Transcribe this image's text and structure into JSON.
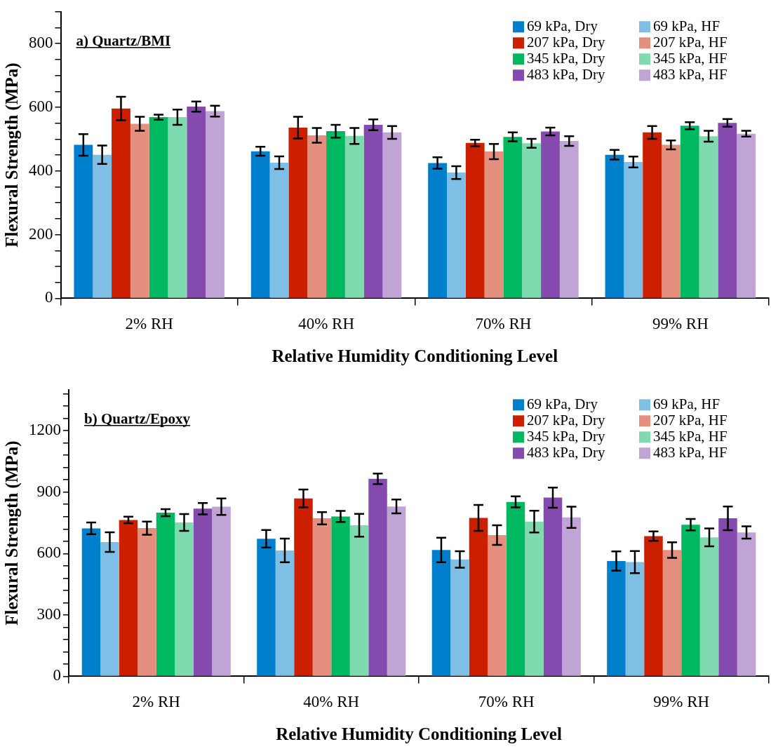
{
  "chart_data": [
    {
      "type": "bar",
      "title": "a) Quartz/BMI",
      "xlabel": "Relative Humidity Conditioning Level",
      "ylabel": "Flexural Strength (MPa)",
      "categories": [
        "2% RH",
        "40% RH",
        "70% RH",
        "99% RH"
      ],
      "ylim": [
        0,
        900
      ],
      "yticks": [
        0,
        {
          "value": 50,
          "label": null
        },
        {
          "value": 100,
          "label": null
        },
        {
          "value": 150,
          "label": null
        },
        200,
        {
          "value": 250,
          "label": null
        },
        {
          "value": 300,
          "label": null
        },
        {
          "value": 350,
          "label": null
        },
        400,
        {
          "value": 450,
          "label": null
        },
        {
          "value": 500,
          "label": null
        },
        {
          "value": 550,
          "label": null
        },
        600,
        {
          "value": 650,
          "label": null
        },
        {
          "value": 700,
          "label": null
        },
        {
          "value": 750,
          "label": null
        },
        800,
        {
          "value": 850,
          "label": null
        },
        {
          "value": 900,
          "label": null
        }
      ],
      "grid": false,
      "legend": "top right",
      "series": [
        {
          "name": "69 kPa, Dry",
          "color": "#0080cc",
          "values": [
            482,
            462,
            425,
            451
          ],
          "errors": [
            34,
            14,
            18,
            15
          ]
        },
        {
          "name": "69 kPa, HF",
          "color": "#7fbfe5",
          "values": [
            451,
            426,
            395,
            428
          ],
          "errors": [
            29,
            20,
            20,
            17
          ]
        },
        {
          "name": "207 kPa, Dry",
          "color": "#cc1f00",
          "values": [
            596,
            536,
            488,
            521
          ],
          "errors": [
            37,
            34,
            10,
            20
          ]
        },
        {
          "name": "207 kPa, HF",
          "color": "#e58f7f",
          "values": [
            548,
            512,
            461,
            482
          ],
          "errors": [
            22,
            23,
            24,
            14
          ]
        },
        {
          "name": "345 kPa, Dry",
          "color": "#00b860",
          "values": [
            569,
            525,
            507,
            542
          ],
          "errors": [
            8,
            20,
            14,
            11
          ]
        },
        {
          "name": "345 kPa, HF",
          "color": "#7fdbaf",
          "values": [
            569,
            510,
            487,
            509
          ],
          "errors": [
            24,
            25,
            14,
            17
          ]
        },
        {
          "name": "483 kPa, Dry",
          "color": "#844aae",
          "values": [
            602,
            545,
            524,
            551
          ],
          "errors": [
            16,
            17,
            12,
            12
          ]
        },
        {
          "name": "483 kPa, HF",
          "color": "#c1a4d6",
          "values": [
            588,
            521,
            494,
            517
          ],
          "errors": [
            17,
            20,
            15,
            9
          ]
        }
      ]
    },
    {
      "type": "bar",
      "title": "b) Quartz/Epoxy",
      "xlabel": "Relative Humidity Conditioning Level",
      "ylabel": "Flexural Strength (MPa)",
      "categories": [
        "2% RH",
        "40% RH",
        "70% RH",
        "99% RH"
      ],
      "ylim": [
        0,
        1400
      ],
      "yticks": [
        0,
        {
          "value": 60,
          "label": null
        },
        {
          "value": 120,
          "label": null
        },
        {
          "value": 180,
          "label": null
        },
        {
          "value": 240,
          "label": null
        },
        300,
        {
          "value": 360,
          "label": null
        },
        {
          "value": 420,
          "label": null
        },
        {
          "value": 480,
          "label": null
        },
        {
          "value": 540,
          "label": null
        },
        600,
        {
          "value": 660,
          "label": null
        },
        {
          "value": 720,
          "label": null
        },
        {
          "value": 780,
          "label": null
        },
        {
          "value": 840,
          "label": null
        },
        900,
        {
          "value": 960,
          "label": null
        },
        {
          "value": 1020,
          "label": null
        },
        {
          "value": 1080,
          "label": null
        },
        {
          "value": 1140,
          "label": null
        },
        1200,
        {
          "value": 1260,
          "label": null
        },
        {
          "value": 1320,
          "label": null
        },
        {
          "value": 1380,
          "label": null
        }
      ],
      "grid": false,
      "legend": "top right",
      "series": [
        {
          "name": "69 kPa, Dry",
          "color": "#0080cc",
          "values": [
            723,
            672,
            617,
            563
          ],
          "errors": [
            29,
            43,
            60,
            47
          ]
        },
        {
          "name": "69 kPa, HF",
          "color": "#7fbfe5",
          "values": [
            656,
            615,
            571,
            558
          ],
          "errors": [
            48,
            58,
            40,
            54
          ]
        },
        {
          "name": "207 kPa, Dry",
          "color": "#cc1f00",
          "values": [
            764,
            869,
            774,
            685
          ],
          "errors": [
            16,
            44,
            63,
            23
          ]
        },
        {
          "name": "207 kPa, HF",
          "color": "#e58f7f",
          "values": [
            724,
            772,
            690,
            617
          ],
          "errors": [
            32,
            30,
            48,
            38
          ]
        },
        {
          "name": "345 kPa, Dry",
          "color": "#00b860",
          "values": [
            800,
            781,
            852,
            741
          ],
          "errors": [
            17,
            27,
            27,
            28
          ]
        },
        {
          "name": "345 kPa, HF",
          "color": "#7fdbaf",
          "values": [
            752,
            738,
            756,
            679
          ],
          "errors": [
            41,
            56,
            53,
            44
          ]
        },
        {
          "name": "483 kPa, Dry",
          "color": "#844aae",
          "values": [
            819,
            965,
            873,
            772
          ],
          "errors": [
            28,
            26,
            49,
            58
          ]
        },
        {
          "name": "483 kPa, HF",
          "color": "#c1a4d6",
          "values": [
            829,
            830,
            777,
            703
          ],
          "errors": [
            40,
            34,
            52,
            30
          ]
        }
      ]
    }
  ]
}
